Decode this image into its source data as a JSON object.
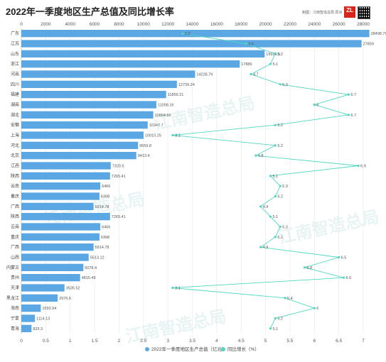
{
  "header": {
    "title": "2022年一季度地区生产总值及同比增长率",
    "source": "制图：江南智造总局 原点",
    "logo_text": "ZL"
  },
  "watermark": "江南智造总局",
  "colors": {
    "bar": "#5aa7e4",
    "line": "#4fd6c2",
    "grid": "#e6e6e6"
  },
  "chart_data": {
    "type": "bar",
    "orientation": "horizontal",
    "title": "2022年一季度地区生产总值及同比增长率",
    "categories": [
      "广东",
      "江苏",
      "山东",
      "浙江",
      "河南",
      "四川",
      "福建",
      "湖南",
      "湖北",
      "安徽",
      "上海",
      "河北",
      "北京",
      "江西",
      "陕西",
      "云南",
      "重庆",
      "广西",
      "陕西",
      "云南",
      "重庆",
      "广西",
      "山西",
      "内蒙古",
      "贵州",
      "天津",
      "黑龙江",
      "海南",
      "宁夏",
      "青海"
    ],
    "series": [
      {
        "name": "2022年一季度地区生产总值（亿元）",
        "axis": "top",
        "values": [
          28498.79,
          27859,
          19926.5,
          17886,
          14228.79,
          12739.24,
          11859.21,
          11058.16,
          10804.66,
          10347.7,
          10010.25,
          9559.8,
          9413.4,
          7320.5,
          7265.41,
          6466,
          6398,
          5914.78,
          7265.41,
          6466,
          6398,
          5914.78,
          5513.12,
          5078.4,
          4815.49,
          3535.52,
          2976.6,
          1593.94,
          1114.13,
          833.3
        ],
        "labels": [
          "28498.79",
          "27859",
          "19926.5",
          "17886",
          "14228.79",
          "12739.24",
          "11859.21",
          "11058.16",
          "10804.66",
          "10347.7",
          "10010.25",
          "9559.8",
          "9413.4",
          "7320.5",
          "7265.41",
          "6466",
          "6398",
          "5914.78",
          "7265.41",
          "6466",
          "6398",
          "5914.78",
          "5513.12",
          "5078.4",
          "4815.49",
          "3535.52",
          "2976.6",
          "1593.94",
          "1114.13",
          "833.3"
        ]
      },
      {
        "name": "同比增长（%）",
        "axis": "bottom",
        "type": "line",
        "values": [
          3.3,
          4.6,
          5.2,
          5.1,
          4.7,
          5.3,
          6.7,
          6.0,
          6.7,
          5.2,
          3.1,
          5.2,
          4.8,
          6.9,
          5.1,
          5.3,
          5.2,
          4.9,
          5.1,
          5.3,
          5.2,
          4.9,
          6.5,
          5.8,
          6.6,
          3.1,
          5.4,
          6.0,
          5.2,
          5.1
        ],
        "labels": [
          "3.3",
          "4.6",
          "5.2",
          "5.1",
          "4.7",
          "5.3",
          "6.7",
          "6",
          "6.7",
          "5.2",
          "3.1",
          "5.2",
          "4.8",
          "6.9",
          "5.1",
          "5.3",
          "5.2",
          "4.9",
          "5.1",
          "5.3",
          "5.2",
          "4.9",
          "6.5",
          "5.8",
          "6.6",
          "3.1",
          "5.4",
          "6",
          "5.2",
          "5.1"
        ]
      }
    ],
    "x_top": {
      "range": [
        0,
        28000
      ],
      "ticks": [
        "0",
        "2000",
        "4000",
        "6000",
        "8000",
        "10000",
        "12000",
        "14000",
        "16000",
        "18000",
        "20000",
        "22000",
        "24000",
        "26000",
        "28000"
      ]
    },
    "x_bottom": {
      "range": [
        0,
        7
      ],
      "ticks": [
        "0",
        "0.5",
        "1",
        "1.5",
        "2",
        "2.5",
        "3",
        "3.5",
        "4",
        "4.5",
        "5",
        "5.5",
        "6",
        "6.5",
        "7"
      ]
    },
    "grid": true,
    "legend": "bottom-center"
  }
}
